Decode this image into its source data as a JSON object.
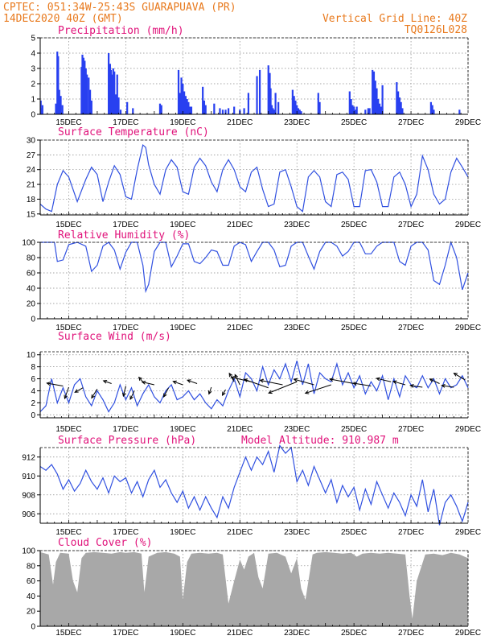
{
  "header": {
    "left_line1": "CPTEC:   051:34W-25:43S   GUARAPUAVA (PR)",
    "left_line2": "14DEC2020 40Z (GMT)",
    "right_line1": "Vertical Grid Line: 40Z",
    "right_line2": "TQ0126L028"
  },
  "x_axis": {
    "tick_labels": [
      "15DEC",
      "17DEC",
      "19DEC",
      "21DEC",
      "23DEC",
      "25DEC",
      "27DEC",
      "29DEC"
    ],
    "range_days": [
      14.0,
      29.0
    ]
  },
  "colors": {
    "series": "#3050e0",
    "bars": "#2840f0",
    "cloud": "#a8a8a8",
    "title": "#e0127a",
    "header": "#e87a1e"
  },
  "chart_data": [
    {
      "type": "bar",
      "title": "Precipitation (mm/h)",
      "ylim": [
        0,
        5
      ],
      "yticks": [
        0,
        1,
        2,
        3,
        4,
        5
      ],
      "x": [
        14.02,
        14.05,
        14.08,
        14.55,
        14.6,
        14.63,
        14.67,
        14.72,
        14.78,
        15.45,
        15.48,
        15.52,
        15.56,
        15.6,
        15.64,
        15.7,
        15.75,
        15.8,
        16.4,
        16.45,
        16.48,
        16.52,
        16.56,
        16.6,
        16.65,
        16.7,
        16.75,
        16.82,
        17.05,
        17.25,
        18.2,
        18.25,
        18.85,
        18.9,
        18.95,
        19.0,
        19.05,
        19.1,
        19.15,
        19.2,
        19.25,
        19.3,
        19.7,
        19.75,
        19.8,
        20.1,
        20.3,
        20.4,
        20.5,
        20.6,
        20.8,
        21.0,
        21.15,
        21.3,
        21.6,
        21.7,
        22.0,
        22.05,
        22.08,
        22.12,
        22.16,
        22.2,
        22.25,
        22.35,
        22.85,
        22.9,
        22.95,
        23.0,
        23.05,
        23.1,
        23.15,
        23.75,
        23.8,
        24.85,
        24.9,
        24.95,
        25.0,
        25.05,
        25.1,
        25.4,
        25.5,
        25.55,
        25.65,
        25.7,
        25.75,
        25.8,
        25.85,
        25.9,
        25.95,
        26.0,
        26.5,
        26.55,
        26.6,
        26.65,
        26.7,
        27.7,
        27.75,
        27.8,
        28.7
      ],
      "values": [
        0.9,
        0.4,
        0.6,
        0.7,
        4.1,
        3.8,
        1.6,
        1.2,
        0.6,
        3.1,
        3.9,
        3.7,
        3.5,
        3.0,
        2.6,
        2.4,
        1.6,
        0.9,
        4.0,
        3.3,
        2.9,
        2.6,
        3.0,
        2.8,
        1.3,
        2.6,
        1.1,
        0.3,
        0.8,
        0.4,
        0.7,
        0.6,
        2.9,
        1.4,
        2.4,
        2.0,
        1.5,
        1.2,
        1.0,
        0.8,
        0.5,
        0.5,
        1.8,
        0.9,
        0.6,
        0.7,
        0.4,
        0.3,
        0.3,
        0.4,
        0.5,
        0.3,
        0.4,
        1.4,
        2.5,
        2.9,
        3.2,
        2.7,
        1.7,
        0.6,
        0.4,
        0.3,
        1.4,
        0.8,
        1.6,
        1.2,
        0.9,
        0.6,
        0.4,
        0.3,
        0.2,
        1.4,
        0.8,
        1.5,
        1.0,
        0.6,
        0.5,
        0.3,
        0.5,
        0.3,
        0.4,
        0.4,
        2.9,
        2.8,
        2.2,
        1.7,
        1.0,
        0.7,
        0.5,
        1.9,
        2.1,
        1.5,
        1.1,
        0.8,
        0.4,
        0.8,
        0.6,
        0.3,
        0.3
      ]
    },
    {
      "type": "line",
      "title": "Surface Temperature (nC)",
      "ylim": [
        14.8,
        30
      ],
      "yticks": [
        15,
        18,
        21,
        24,
        27,
        30
      ],
      "x": [
        14.0,
        14.2,
        14.4,
        14.6,
        14.8,
        15.0,
        15.3,
        15.6,
        15.8,
        16.0,
        16.2,
        16.4,
        16.6,
        16.8,
        17.0,
        17.2,
        17.4,
        17.6,
        17.7,
        17.8,
        18.0,
        18.2,
        18.4,
        18.6,
        18.8,
        19.0,
        19.2,
        19.4,
        19.6,
        19.8,
        20.0,
        20.2,
        20.4,
        20.6,
        20.8,
        21.0,
        21.2,
        21.4,
        21.6,
        21.8,
        22.0,
        22.2,
        22.4,
        22.6,
        22.8,
        23.0,
        23.2,
        23.4,
        23.6,
        23.8,
        24.0,
        24.2,
        24.4,
        24.6,
        24.8,
        25.0,
        25.2,
        25.4,
        25.6,
        25.8,
        26.0,
        26.2,
        26.4,
        26.6,
        26.8,
        27.0,
        27.2,
        27.4,
        27.6,
        27.8,
        28.0,
        28.2,
        28.4,
        28.6,
        28.8,
        29.0
      ],
      "values": [
        17.0,
        16.0,
        15.5,
        21.0,
        23.8,
        22.5,
        17.5,
        22.0,
        24.5,
        23.0,
        17.5,
        21.5,
        24.8,
        23.0,
        18.5,
        18.0,
        24.0,
        29.0,
        28.5,
        25.0,
        21.0,
        19.0,
        24.0,
        26.0,
        24.5,
        19.5,
        19.0,
        24.5,
        26.3,
        24.8,
        21.5,
        19.5,
        24.0,
        26.0,
        24.0,
        20.5,
        19.5,
        23.5,
        24.5,
        20.0,
        16.5,
        17.0,
        23.5,
        24.0,
        20.5,
        16.5,
        15.5,
        22.5,
        23.8,
        22.5,
        17.5,
        16.5,
        23.0,
        23.5,
        22.0,
        16.5,
        16.5,
        23.8,
        24.0,
        21.5,
        16.5,
        16.5,
        22.5,
        23.5,
        21.0,
        16.5,
        19.0,
        26.8,
        24.0,
        19.0,
        17.0,
        18.0,
        23.5,
        26.3,
        24.5,
        22.5
      ]
    },
    {
      "type": "line",
      "title": "Relative Humidity (%)",
      "ylim": [
        0,
        100
      ],
      "yticks": [
        0,
        20,
        40,
        60,
        80,
        100
      ],
      "x": [
        14.0,
        14.3,
        14.5,
        14.6,
        14.8,
        15.0,
        15.3,
        15.6,
        15.8,
        16.0,
        16.2,
        16.4,
        16.6,
        16.8,
        17.0,
        17.2,
        17.4,
        17.6,
        17.7,
        17.8,
        18.0,
        18.2,
        18.4,
        18.6,
        18.8,
        19.0,
        19.2,
        19.4,
        19.6,
        19.8,
        20.0,
        20.2,
        20.4,
        20.6,
        20.8,
        21.0,
        21.2,
        21.4,
        21.6,
        21.8,
        22.0,
        22.2,
        22.4,
        22.6,
        22.8,
        23.0,
        23.2,
        23.4,
        23.6,
        23.8,
        24.0,
        24.2,
        24.4,
        24.6,
        24.8,
        25.0,
        25.2,
        25.4,
        25.6,
        25.8,
        26.0,
        26.2,
        26.4,
        26.6,
        26.8,
        27.0,
        27.2,
        27.4,
        27.6,
        27.8,
        28.0,
        28.2,
        28.4,
        28.6,
        28.8,
        29.0
      ],
      "values": [
        100,
        100,
        100,
        75,
        77,
        97,
        100,
        95,
        62,
        70,
        95,
        100,
        90,
        65,
        87,
        100,
        100,
        70,
        36,
        45,
        88,
        100,
        100,
        68,
        82,
        98,
        98,
        75,
        72,
        80,
        90,
        88,
        70,
        70,
        95,
        100,
        97,
        75,
        88,
        100,
        100,
        90,
        68,
        70,
        95,
        100,
        100,
        82,
        65,
        88,
        100,
        100,
        95,
        82,
        88,
        100,
        100,
        85,
        85,
        95,
        100,
        100,
        100,
        75,
        70,
        95,
        100,
        100,
        90,
        50,
        45,
        70,
        100,
        80,
        38,
        60
      ]
    },
    {
      "type": "line",
      "title": "Surface Wind (m/s)",
      "ylim": [
        -0.5,
        10.5
      ],
      "yticks": [
        0,
        2,
        4,
        6,
        8,
        10
      ],
      "x": [
        14.0,
        14.2,
        14.4,
        14.6,
        14.8,
        15.0,
        15.2,
        15.4,
        15.6,
        15.8,
        16.0,
        16.2,
        16.4,
        16.6,
        16.8,
        17.0,
        17.2,
        17.4,
        17.6,
        17.8,
        18.0,
        18.2,
        18.4,
        18.6,
        18.8,
        19.0,
        19.2,
        19.4,
        19.6,
        19.8,
        20.0,
        20.2,
        20.4,
        20.6,
        20.8,
        21.0,
        21.2,
        21.4,
        21.6,
        21.8,
        22.0,
        22.2,
        22.4,
        22.6,
        22.8,
        23.0,
        23.2,
        23.4,
        23.6,
        23.8,
        24.0,
        24.2,
        24.4,
        24.6,
        24.8,
        25.0,
        25.2,
        25.4,
        25.6,
        25.8,
        26.0,
        26.2,
        26.4,
        26.6,
        26.8,
        27.0,
        27.2,
        27.4,
        27.6,
        27.8,
        28.0,
        28.2,
        28.4,
        28.6,
        28.8,
        29.0
      ],
      "values": [
        0.5,
        1.5,
        6.0,
        2.0,
        4.5,
        2.0,
        5.0,
        6.0,
        3.0,
        1.5,
        4.0,
        2.5,
        0.5,
        2.0,
        5.0,
        2.5,
        4.5,
        1.5,
        3.5,
        5.0,
        3.0,
        2.0,
        4.0,
        5.0,
        2.5,
        3.0,
        4.0,
        2.5,
        3.5,
        2.0,
        1.0,
        2.5,
        1.5,
        4.0,
        6.0,
        3.0,
        7.0,
        6.0,
        4.0,
        8.0,
        5.0,
        7.5,
        6.0,
        8.5,
        5.5,
        9.0,
        5.0,
        8.5,
        3.5,
        7.0,
        6.0,
        5.5,
        8.5,
        5.0,
        7.0,
        4.5,
        6.5,
        3.5,
        5.5,
        4.0,
        6.5,
        2.5,
        6.0,
        3.0,
        6.5,
        5.0,
        4.5,
        6.5,
        4.5,
        6.0,
        3.5,
        6.0,
        4.5,
        5.0,
        6.5,
        4.5
      ],
      "arrows": [
        {
          "x": 14.8,
          "y": 4.8,
          "u": -2,
          "v": 0.5
        },
        {
          "x": 15.0,
          "y": 4.6,
          "u": -0.5,
          "v": -2
        },
        {
          "x": 15.5,
          "y": 4.5,
          "u": -1,
          "v": -0.8
        },
        {
          "x": 16.0,
          "y": 4.3,
          "u": -0.7,
          "v": -1.6
        },
        {
          "x": 16.5,
          "y": 5.2,
          "u": -1,
          "v": 0.5
        },
        {
          "x": 17.0,
          "y": 4.8,
          "u": -0.3,
          "v": -1.8
        },
        {
          "x": 17.3,
          "y": 4.0,
          "u": -0.5,
          "v": -1.5
        },
        {
          "x": 17.6,
          "y": 5.5,
          "u": -0.5,
          "v": 0.8
        },
        {
          "x": 18.0,
          "y": 5.0,
          "u": -1.5,
          "v": 0.5
        },
        {
          "x": 18.5,
          "y": 4.5,
          "u": -0.6,
          "v": -1.6
        },
        {
          "x": 19.0,
          "y": 5.0,
          "u": -1.2,
          "v": 0.6
        },
        {
          "x": 19.5,
          "y": 5.2,
          "u": -1.2,
          "v": 0.6
        },
        {
          "x": 20.0,
          "y": 4.6,
          "u": -0.3,
          "v": -1.2
        },
        {
          "x": 20.5,
          "y": 4.2,
          "u": -0.4,
          "v": -1.0
        },
        {
          "x": 20.8,
          "y": 5.5,
          "u": -0.6,
          "v": 1.5
        },
        {
          "x": 21.0,
          "y": 5.0,
          "u": -0.6,
          "v": 1.8
        },
        {
          "x": 21.4,
          "y": 5.5,
          "u": -2.5,
          "v": 0.8
        },
        {
          "x": 22.0,
          "y": 4.5,
          "u": -3,
          "v": 1.5
        },
        {
          "x": 22.5,
          "y": 5.0,
          "u": -2.8,
          "v": 0.8
        },
        {
          "x": 23.0,
          "y": 5.5,
          "u": -3.5,
          "v": -2.0
        },
        {
          "x": 23.6,
          "y": 5.0,
          "u": -2.5,
          "v": 1.0
        },
        {
          "x": 24.2,
          "y": 5.0,
          "u": -3.2,
          "v": -1.5
        },
        {
          "x": 25.0,
          "y": 5.2,
          "u": -3,
          "v": 0.8
        },
        {
          "x": 25.6,
          "y": 4.8,
          "u": -2.2,
          "v": 0.5
        },
        {
          "x": 26.3,
          "y": 5.5,
          "u": -1.8,
          "v": 0.6
        },
        {
          "x": 26.8,
          "y": 5.0,
          "u": -1.5,
          "v": 0.6
        },
        {
          "x": 27.4,
          "y": 4.6,
          "u": -1.5,
          "v": 0.3
        },
        {
          "x": 28.0,
          "y": 5.2,
          "u": -1.2,
          "v": 0.8
        },
        {
          "x": 28.5,
          "y": 4.6,
          "u": -1.5,
          "v": 0.3
        },
        {
          "x": 28.9,
          "y": 5.8,
          "u": -1.4,
          "v": 1.2
        }
      ]
    },
    {
      "type": "line",
      "title": "Surface Pressure (hPa)",
      "annotation": "Model Altitude: 910.987 m",
      "ylim": [
        905,
        913
      ],
      "yticks": [
        906,
        908,
        910,
        912
      ],
      "x": [
        14.0,
        14.2,
        14.4,
        14.6,
        14.8,
        15.0,
        15.2,
        15.4,
        15.6,
        15.8,
        16.0,
        16.2,
        16.4,
        16.6,
        16.8,
        17.0,
        17.2,
        17.4,
        17.6,
        17.8,
        18.0,
        18.2,
        18.4,
        18.6,
        18.8,
        19.0,
        19.2,
        19.4,
        19.6,
        19.8,
        20.0,
        20.2,
        20.4,
        20.6,
        20.8,
        21.0,
        21.2,
        21.4,
        21.6,
        21.8,
        22.0,
        22.2,
        22.4,
        22.6,
        22.8,
        23.0,
        23.2,
        23.4,
        23.6,
        23.8,
        24.0,
        24.2,
        24.4,
        24.6,
        24.8,
        25.0,
        25.2,
        25.4,
        25.6,
        25.8,
        26.0,
        26.2,
        26.4,
        26.6,
        26.8,
        27.0,
        27.2,
        27.4,
        27.6,
        27.8,
        28.0,
        28.2,
        28.4,
        28.6,
        28.8,
        29.0
      ],
      "values": [
        911.0,
        910.6,
        911.2,
        910.2,
        908.6,
        909.6,
        908.4,
        909.2,
        910.6,
        909.4,
        908.6,
        909.8,
        908.2,
        910.0,
        909.4,
        909.8,
        908.2,
        909.4,
        907.8,
        909.6,
        910.6,
        908.8,
        909.6,
        908.2,
        907.2,
        908.4,
        906.6,
        907.8,
        906.4,
        907.8,
        906.6,
        905.6,
        907.8,
        906.6,
        908.8,
        910.4,
        912.0,
        910.6,
        912.0,
        911.2,
        912.6,
        910.4,
        913.2,
        912.4,
        913.0,
        909.4,
        910.6,
        909.0,
        911.0,
        909.6,
        908.2,
        909.6,
        907.2,
        909.0,
        907.8,
        908.8,
        906.4,
        908.6,
        907.0,
        909.4,
        908.0,
        906.6,
        908.2,
        907.2,
        905.8,
        908.0,
        906.8,
        909.6,
        906.2,
        908.6,
        904.8,
        907.2,
        908.0,
        906.8,
        905.2,
        907.2
      ]
    },
    {
      "type": "area",
      "title": "Cloud Cover (%)",
      "ylim": [
        0,
        100
      ],
      "yticks": [
        0,
        20,
        40,
        60,
        80,
        100
      ],
      "x": [
        14.0,
        14.3,
        14.45,
        14.55,
        14.7,
        15.0,
        15.15,
        15.3,
        15.45,
        15.6,
        15.9,
        16.2,
        16.5,
        16.8,
        17.0,
        17.3,
        17.55,
        17.65,
        17.8,
        18.1,
        18.4,
        18.7,
        18.9,
        19.0,
        19.15,
        19.3,
        19.6,
        19.9,
        20.2,
        20.4,
        20.6,
        20.8,
        21.0,
        21.15,
        21.3,
        21.5,
        21.65,
        21.8,
        22.0,
        22.3,
        22.6,
        22.8,
        23.0,
        23.15,
        23.3,
        23.55,
        23.7,
        24.0,
        24.3,
        24.6,
        24.9,
        25.1,
        25.3,
        25.6,
        25.9,
        26.2,
        26.5,
        26.8,
        26.95,
        27.05,
        27.2,
        27.5,
        27.8,
        28.1,
        28.4,
        28.7,
        29.0
      ],
      "values": [
        98,
        95,
        55,
        85,
        97,
        96,
        60,
        45,
        90,
        97,
        98,
        97,
        96,
        98,
        97,
        98,
        96,
        45,
        92,
        97,
        98,
        96,
        92,
        35,
        85,
        96,
        97,
        96,
        97,
        95,
        30,
        60,
        88,
        75,
        92,
        97,
        65,
        50,
        96,
        97,
        92,
        70,
        90,
        50,
        35,
        95,
        97,
        98,
        97,
        96,
        97,
        92,
        96,
        97,
        96,
        97,
        96,
        95,
        40,
        10,
        60,
        95,
        96,
        94,
        97,
        95,
        90
      ]
    }
  ]
}
